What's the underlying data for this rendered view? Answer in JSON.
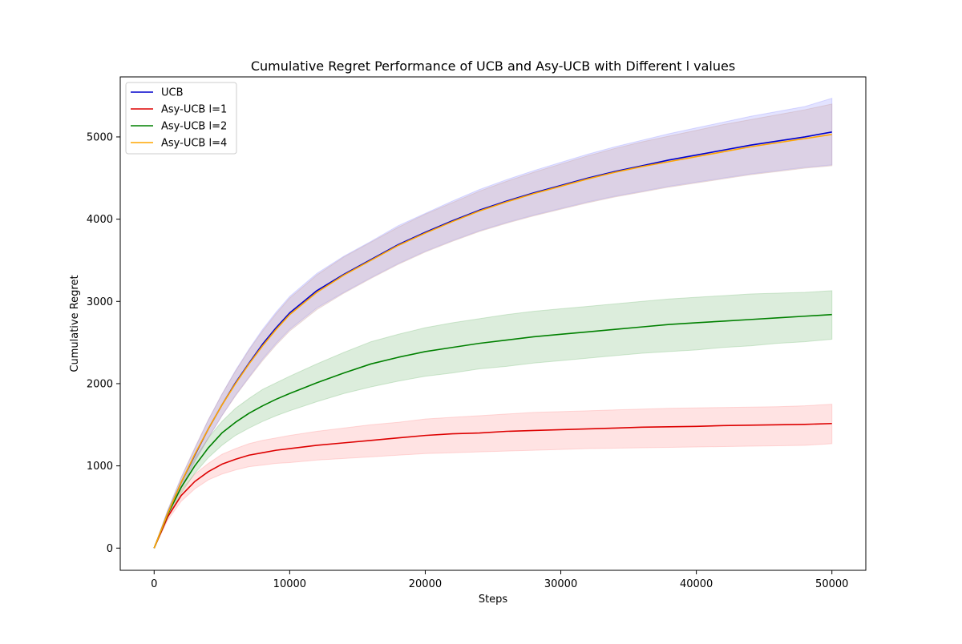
{
  "chart_data": {
    "type": "line",
    "title": "Cumulative Regret Performance of UCB and Asy-UCB with Different l values",
    "xlabel": "Steps",
    "ylabel": "Cumulative Regret",
    "xlim": [
      -2500,
      52500
    ],
    "ylim": [
      -270,
      5730
    ],
    "x_ticks": [
      0,
      10000,
      20000,
      30000,
      40000,
      50000
    ],
    "x_tick_labels": [
      "0",
      "10000",
      "20000",
      "30000",
      "40000",
      "50000"
    ],
    "y_ticks": [
      0,
      1000,
      2000,
      3000,
      4000,
      5000
    ],
    "y_tick_labels": [
      "0",
      "1000",
      "2000",
      "3000",
      "4000",
      "5000"
    ],
    "grid": false,
    "legend_position": "top-left",
    "x": [
      0,
      1000,
      2000,
      3000,
      4000,
      5000,
      6000,
      7000,
      8000,
      9000,
      10000,
      12000,
      14000,
      16000,
      18000,
      20000,
      22000,
      24000,
      26000,
      28000,
      30000,
      32000,
      34000,
      36000,
      38000,
      40000,
      42000,
      44000,
      46000,
      48000,
      50000
    ],
    "series": [
      {
        "name": "UCB",
        "color": "#0000cc",
        "values": [
          0,
          420,
          800,
          1130,
          1450,
          1740,
          2010,
          2250,
          2480,
          2680,
          2860,
          3130,
          3330,
          3510,
          3690,
          3840,
          3980,
          4110,
          4220,
          4320,
          4410,
          4500,
          4580,
          4650,
          4720,
          4780,
          4840,
          4900,
          4950,
          5000,
          5060
        ],
        "lower": [
          0,
          380,
          740,
          1050,
          1340,
          1610,
          1860,
          2080,
          2300,
          2490,
          2660,
          2920,
          3110,
          3290,
          3460,
          3610,
          3740,
          3860,
          3960,
          4050,
          4130,
          4210,
          4280,
          4340,
          4400,
          4450,
          4500,
          4550,
          4590,
          4630,
          4660
        ],
        "upper": [
          0,
          460,
          860,
          1210,
          1560,
          1870,
          2160,
          2420,
          2660,
          2870,
          3060,
          3340,
          3550,
          3730,
          3920,
          4070,
          4220,
          4360,
          4480,
          4590,
          4690,
          4790,
          4880,
          4960,
          5040,
          5110,
          5180,
          5250,
          5310,
          5370,
          5470
        ],
        "band_color": "#9999ff"
      },
      {
        "name": "Asy-UCB l=1",
        "color": "#dd0000",
        "values": [
          0,
          380,
          640,
          810,
          930,
          1020,
          1080,
          1130,
          1160,
          1190,
          1210,
          1250,
          1280,
          1310,
          1340,
          1370,
          1390,
          1400,
          1420,
          1430,
          1440,
          1450,
          1460,
          1470,
          1475,
          1480,
          1490,
          1495,
          1500,
          1505,
          1515
        ],
        "lower": [
          0,
          340,
          570,
          720,
          830,
          900,
          950,
          990,
          1010,
          1030,
          1040,
          1070,
          1090,
          1110,
          1130,
          1150,
          1160,
          1170,
          1180,
          1190,
          1200,
          1210,
          1215,
          1220,
          1225,
          1230,
          1235,
          1240,
          1245,
          1250,
          1270
        ],
        "upper": [
          0,
          420,
          710,
          900,
          1030,
          1140,
          1210,
          1270,
          1310,
          1340,
          1370,
          1420,
          1460,
          1500,
          1530,
          1570,
          1590,
          1610,
          1630,
          1650,
          1660,
          1670,
          1680,
          1690,
          1700,
          1705,
          1710,
          1715,
          1720,
          1730,
          1750
        ],
        "band_color": "#ff9999"
      },
      {
        "name": "Asy-UCB l=2",
        "color": "#008000",
        "values": [
          0,
          410,
          740,
          1000,
          1220,
          1400,
          1530,
          1640,
          1730,
          1810,
          1880,
          2010,
          2130,
          2240,
          2320,
          2390,
          2440,
          2490,
          2530,
          2570,
          2600,
          2630,
          2660,
          2690,
          2720,
          2740,
          2760,
          2780,
          2800,
          2820,
          2840
        ],
        "lower": [
          0,
          370,
          670,
          910,
          1100,
          1250,
          1370,
          1460,
          1540,
          1610,
          1670,
          1780,
          1880,
          1960,
          2030,
          2090,
          2130,
          2180,
          2210,
          2250,
          2280,
          2310,
          2340,
          2370,
          2390,
          2410,
          2440,
          2460,
          2490,
          2510,
          2540
        ],
        "upper": [
          0,
          450,
          810,
          1090,
          1340,
          1540,
          1700,
          1820,
          1930,
          2010,
          2090,
          2240,
          2380,
          2510,
          2600,
          2680,
          2740,
          2790,
          2840,
          2880,
          2910,
          2940,
          2970,
          3000,
          3030,
          3050,
          3070,
          3090,
          3100,
          3110,
          3130
        ],
        "band_color": "#80c080"
      },
      {
        "name": "Asy-UCB l=4",
        "color": "#ffa500",
        "values": [
          0,
          420,
          800,
          1140,
          1450,
          1740,
          2000,
          2240,
          2460,
          2660,
          2840,
          3110,
          3320,
          3500,
          3680,
          3830,
          3970,
          4100,
          4210,
          4310,
          4400,
          4490,
          4570,
          4640,
          4700,
          4760,
          4820,
          4880,
          4930,
          4980,
          5030
        ],
        "lower": [
          0,
          380,
          740,
          1060,
          1340,
          1610,
          1850,
          2070,
          2280,
          2470,
          2640,
          2900,
          3100,
          3280,
          3450,
          3600,
          3730,
          3850,
          3950,
          4040,
          4120,
          4200,
          4270,
          4330,
          4390,
          4440,
          4490,
          4540,
          4580,
          4620,
          4650
        ],
        "upper": [
          0,
          460,
          860,
          1220,
          1560,
          1870,
          2150,
          2410,
          2640,
          2850,
          3040,
          3320,
          3540,
          3720,
          3900,
          4060,
          4200,
          4340,
          4460,
          4570,
          4670,
          4770,
          4860,
          4940,
          5010,
          5080,
          5150,
          5210,
          5270,
          5330,
          5400
        ],
        "band_color": "#c8a0a0"
      }
    ]
  }
}
